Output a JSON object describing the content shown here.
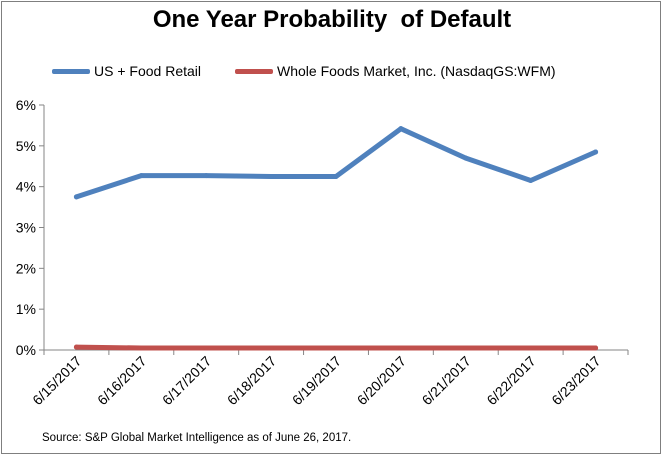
{
  "chart_data": {
    "type": "line",
    "title": "One Year Probability  of Default",
    "xlabel": "",
    "ylabel": "",
    "categories": [
      "6/15/2017",
      "6/16/2017",
      "6/17/2017",
      "6/18/2017",
      "6/19/2017",
      "6/20/2017",
      "6/21/2017",
      "6/22/2017",
      "6/23/2017"
    ],
    "series": [
      {
        "name": "US + Food Retail",
        "color": "#4f81bd",
        "values": [
          3.75,
          4.27,
          4.27,
          4.25,
          4.25,
          5.42,
          4.7,
          4.15,
          4.85
        ]
      },
      {
        "name": "Whole Foods Market, Inc. (NasdaqGS:WFM)",
        "color": "#c0504d",
        "values": [
          0.07,
          0.05,
          0.05,
          0.05,
          0.05,
          0.05,
          0.05,
          0.05,
          0.05
        ]
      }
    ],
    "ylim": [
      0,
      6
    ],
    "yticks": [
      0,
      1,
      2,
      3,
      4,
      5,
      6
    ],
    "ytick_labels": [
      "0%",
      "1%",
      "2%",
      "3%",
      "4%",
      "5%",
      "6%"
    ],
    "grid": false,
    "legend_position": "top"
  },
  "source_note": "Source: S&P Global Market Intelligence as of June 26, 2017."
}
